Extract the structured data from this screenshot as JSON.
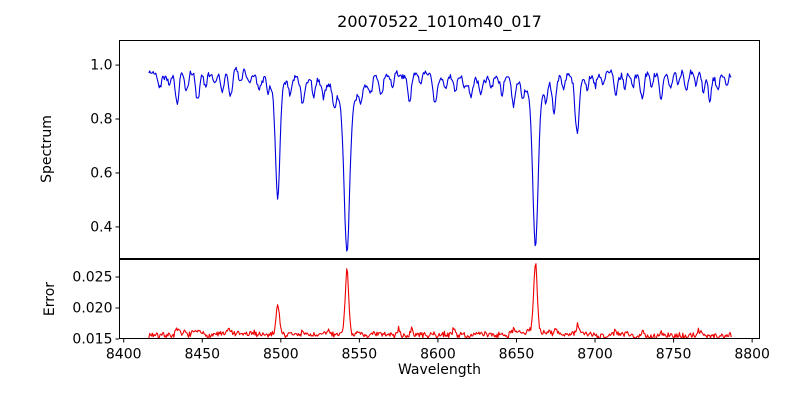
{
  "chart_data": {
    "type": "line",
    "title": "20070522_1010m40_017",
    "xlabel": "Wavelength",
    "grid": false,
    "background": "#ffffff",
    "axis_color": "#000000",
    "xlim": [
      8397,
      8805
    ],
    "xticks": {
      "values": [
        8400,
        8450,
        8500,
        8550,
        8600,
        8650,
        8700,
        8750,
        8800
      ],
      "labels": [
        "8400",
        "8450",
        "8500",
        "8550",
        "8600",
        "8650",
        "8700",
        "8750",
        "8800"
      ]
    },
    "panels": [
      {
        "name": "spectrum",
        "ylabel": "Spectrum",
        "ylim": [
          0.281,
          1.093
        ],
        "yticks": {
          "values": [
            0.4,
            0.6,
            0.8,
            1.0
          ],
          "labels": [
            "0.4",
            "0.6",
            "0.8",
            "1.0"
          ]
        },
        "line_color": "#0000e0",
        "series": {
          "x_start": 8416,
          "x_end": 8787,
          "step": 0.55,
          "seed": 42,
          "continuum_base": 0.968,
          "continuum_wave1": 0.007,
          "continuum_period1": 39,
          "continuum_wave2": 0.005,
          "continuum_period2": 14.3,
          "noise_amp": 0.02,
          "walk_amp": 0.012,
          "absorption_lines_strong": [
            {
              "center": 8498.0,
              "depth": 0.4,
              "sigma": 1.4,
              "wing_depth": 0.07,
              "wing_width": 5.0,
              "min_flux": 0.51
            },
            {
              "center": 8542.1,
              "depth": 0.52,
              "sigma": 1.7,
              "wing_depth": 0.13,
              "wing_width": 7.0,
              "min_flux": 0.32
            },
            {
              "center": 8662.1,
              "depth": 0.51,
              "sigma": 1.6,
              "wing_depth": 0.125,
              "wing_width": 6.5,
              "min_flux": 0.335
            },
            {
              "center": 8688.6,
              "depth": 0.195,
              "sigma": 1.3,
              "wing_depth": 0.025,
              "wing_width": 4.0,
              "min_flux": 0.75
            }
          ],
          "absorption_lines_weak": [
            [
              8423,
              0.045,
              1.0
            ],
            [
              8429,
              0.03,
              0.9
            ],
            [
              8434,
              0.115,
              1.1
            ],
            [
              8440,
              0.07,
              1.0
            ],
            [
              8447,
              0.1,
              1.2
            ],
            [
              8452,
              0.05,
              0.9
            ],
            [
              8458,
              0.04,
              0.9
            ],
            [
              8463,
              0.07,
              1.0
            ],
            [
              8468,
              0.1,
              1.1
            ],
            [
              8474,
              0.05,
              0.9
            ],
            [
              8480,
              0.04,
              0.9
            ],
            [
              8486,
              0.05,
              1.0
            ],
            [
              8492,
              0.04,
              0.8
            ],
            [
              8506,
              0.06,
              1.0
            ],
            [
              8514,
              0.09,
              1.2
            ],
            [
              8521,
              0.05,
              0.9
            ],
            [
              8527,
              0.06,
              1.0
            ],
            [
              8534,
              0.07,
              1.0
            ],
            [
              8551,
              0.05,
              0.9
            ],
            [
              8557,
              0.06,
              1.0
            ],
            [
              8564,
              0.07,
              1.0
            ],
            [
              8571,
              0.05,
              0.9
            ],
            [
              8582,
              0.095,
              1.1
            ],
            [
              8589,
              0.045,
              0.9
            ],
            [
              8598,
              0.095,
              1.2
            ],
            [
              8605,
              0.05,
              0.9
            ],
            [
              8611,
              0.065,
              1.0
            ],
            [
              8617,
              0.045,
              0.9
            ],
            [
              8621,
              0.07,
              1.0
            ],
            [
              8627,
              0.055,
              0.9
            ],
            [
              8634,
              0.05,
              0.9
            ],
            [
              8641,
              0.06,
              1.0
            ],
            [
              8648,
              0.09,
              1.1
            ],
            [
              8654,
              0.05,
              0.9
            ],
            [
              8669,
              0.06,
              0.9
            ],
            [
              8674,
              0.115,
              1.1
            ],
            [
              8680,
              0.06,
              0.9
            ],
            [
              8695,
              0.05,
              0.9
            ],
            [
              8700,
              0.045,
              0.9
            ],
            [
              8705,
              0.05,
              0.9
            ],
            [
              8713,
              0.09,
              1.1
            ],
            [
              8719,
              0.055,
              0.9
            ],
            [
              8724,
              0.06,
              1.0
            ],
            [
              8730,
              0.095,
              1.1
            ],
            [
              8736,
              0.055,
              0.9
            ],
            [
              8742,
              0.1,
              1.1
            ],
            [
              8748,
              0.06,
              0.9
            ],
            [
              8753,
              0.055,
              0.9
            ],
            [
              8758,
              0.08,
              1.0
            ],
            [
              8764,
              0.05,
              0.9
            ],
            [
              8769,
              0.055,
              0.9
            ],
            [
              8773,
              0.085,
              1.0
            ],
            [
              8778,
              0.05,
              0.9
            ],
            [
              8784,
              0.045,
              0.9
            ]
          ]
        }
      },
      {
        "name": "error",
        "ylabel": "Error",
        "ylim": [
          0.015,
          0.0279
        ],
        "yticks": {
          "values": [
            0.015,
            0.02,
            0.025
          ],
          "labels": [
            "0.015",
            "0.020",
            "0.025"
          ]
        },
        "line_color": "#f00000",
        "series": {
          "x_start": 8416,
          "x_end": 8787,
          "step": 0.55,
          "seed": 7,
          "baseline": 0.01565,
          "baseline_wave": 0.0001,
          "baseline_period": 33,
          "noise_amp": 0.0009,
          "walk_amp": 0.0003,
          "emission_peaks_strong": [
            {
              "center": 8498.0,
              "height": 0.0047,
              "sigma": 1.0,
              "wing_height": 0.0004,
              "wing_width": 3.0,
              "peak_value": 0.0205
            },
            {
              "center": 8542.1,
              "height": 0.0098,
              "sigma": 1.1,
              "wing_height": 0.0008,
              "wing_width": 4.0,
              "peak_value": 0.0262
            },
            {
              "center": 8662.1,
              "height": 0.0108,
              "sigma": 1.1,
              "wing_height": 0.0008,
              "wing_width": 4.0,
              "peak_value": 0.0272
            }
          ],
          "emission_peaks_weak": [
            [
              8434,
              0.0007,
              1.0
            ],
            [
              8447,
              0.0006,
              0.9
            ],
            [
              8467,
              0.0008,
              1.0
            ],
            [
              8514,
              0.0006,
              0.9
            ],
            [
              8530,
              0.0007,
              0.9
            ],
            [
              8575,
              0.0012,
              1.0
            ],
            [
              8583,
              0.0008,
              0.9
            ],
            [
              8610,
              0.0009,
              1.0
            ],
            [
              8648,
              0.0008,
              1.0
            ],
            [
              8675,
              0.0008,
              0.9
            ],
            [
              8689,
              0.0013,
              1.0
            ],
            [
              8713,
              0.0006,
              0.9
            ],
            [
              8730,
              0.0007,
              0.9
            ],
            [
              8742,
              0.0006,
              0.9
            ],
            [
              8766,
              0.0007,
              0.9
            ]
          ]
        }
      }
    ]
  }
}
